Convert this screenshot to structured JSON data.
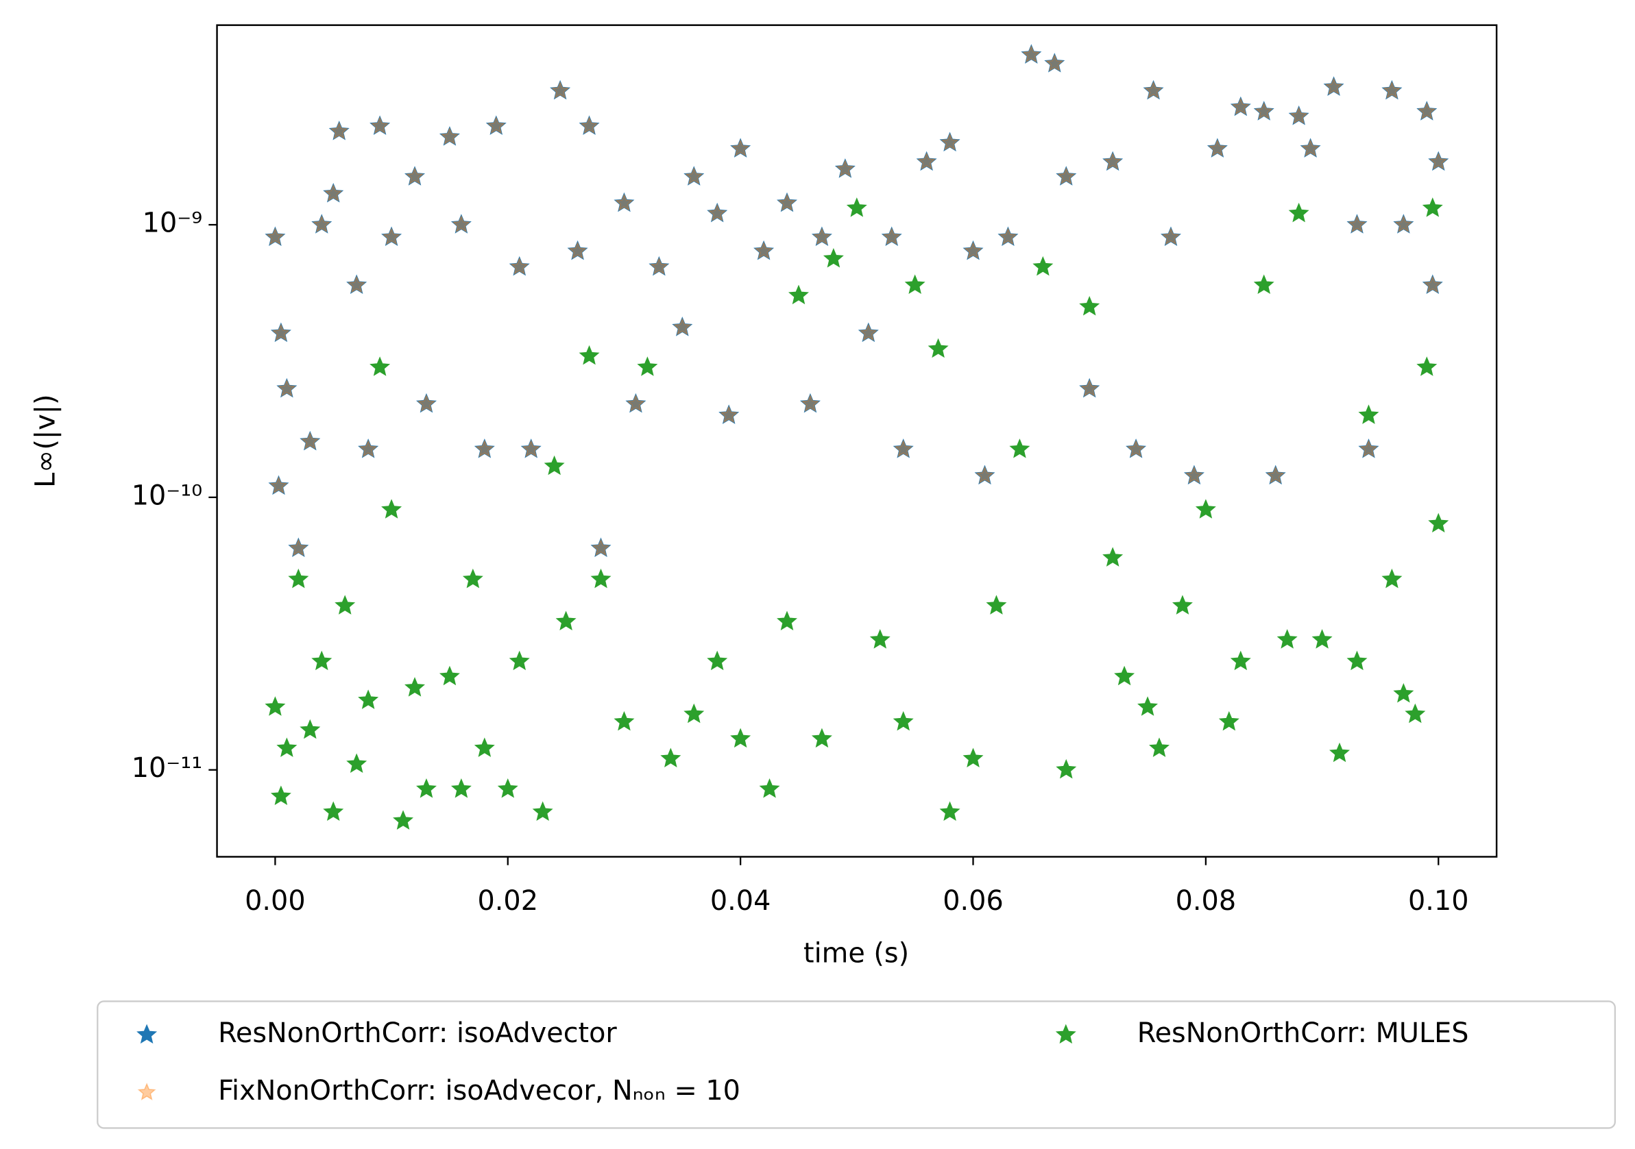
{
  "chart_data": {
    "type": "scatter",
    "x_label": "time (s)",
    "y_label": "L∞(|v|)",
    "xlim": [
      -0.005,
      0.105
    ],
    "ylim": [
      4.8e-12,
      5.4e-09
    ],
    "log_y": true,
    "xticks": [
      {
        "value": 0,
        "label": "0.00"
      },
      {
        "value": 0.02,
        "label": "0.02"
      },
      {
        "value": 0.04,
        "label": "0.04"
      },
      {
        "value": 0.06,
        "label": "0.06"
      },
      {
        "value": 0.08,
        "label": "0.08"
      },
      {
        "value": 0.1,
        "label": "0.10"
      }
    ],
    "yticks": [
      {
        "value": 1e-11,
        "label": "10⁻¹¹"
      },
      {
        "value": 1e-10,
        "label": "10⁻¹⁰"
      },
      {
        "value": 1e-09,
        "label": "10⁻⁹"
      }
    ],
    "legend": "below",
    "series": [
      {
        "name": "ResNonOrthCorr: isoAdvector",
        "color": "#1f77b4",
        "x": [
          0.0,
          0.0003,
          0.0005,
          0.001,
          0.002,
          0.003,
          0.004,
          0.005,
          0.0055,
          0.007,
          0.008,
          0.009,
          0.01,
          0.012,
          0.013,
          0.015,
          0.016,
          0.018,
          0.019,
          0.021,
          0.022,
          0.0245,
          0.026,
          0.027,
          0.028,
          0.03,
          0.031,
          0.033,
          0.035,
          0.036,
          0.038,
          0.039,
          0.04,
          0.042,
          0.044,
          0.046,
          0.047,
          0.049,
          0.051,
          0.053,
          0.054,
          0.056,
          0.058,
          0.06,
          0.061,
          0.063,
          0.065,
          0.067,
          0.068,
          0.07,
          0.072,
          0.074,
          0.0755,
          0.077,
          0.079,
          0.081,
          0.083,
          0.085,
          0.086,
          0.088,
          0.089,
          0.091,
          0.093,
          0.094,
          0.096,
          0.097,
          0.099,
          0.1,
          0.0995
        ],
        "values": [
          9e-10,
          1.1e-10,
          4e-10,
          2.5e-10,
          6.5e-11,
          1.6e-10,
          1e-09,
          1.3e-09,
          2.2e-09,
          6e-10,
          1.5e-10,
          2.3e-09,
          9e-10,
          1.5e-09,
          2.2e-10,
          2.1e-09,
          1e-09,
          1.5e-10,
          2.3e-09,
          7e-10,
          1.5e-10,
          3.1e-09,
          8e-10,
          2.3e-09,
          6.5e-11,
          1.2e-09,
          2.2e-10,
          7e-10,
          4.2e-10,
          1.5e-09,
          1.1e-09,
          2e-10,
          1.9e-09,
          8e-10,
          1.2e-09,
          2.2e-10,
          9e-10,
          1.6e-09,
          4e-10,
          9e-10,
          1.5e-10,
          1.7e-09,
          2e-09,
          8e-10,
          1.2e-10,
          9e-10,
          4.2e-09,
          3.9e-09,
          1.5e-09,
          2.5e-10,
          1.7e-09,
          1.5e-10,
          3.1e-09,
          9e-10,
          1.2e-10,
          1.9e-09,
          2.7e-09,
          2.6e-09,
          1.2e-10,
          2.5e-09,
          1.9e-09,
          3.2e-09,
          1e-09,
          1.5e-10,
          3.1e-09,
          1e-09,
          2.6e-09,
          1.7e-09,
          6e-10
        ]
      },
      {
        "name": "FixNonOrthCorr: isoAdvecor, Nₙₒₙ = 10",
        "color": "#ff7f0e",
        "x": [
          0.0,
          0.0003,
          0.0005,
          0.001,
          0.002,
          0.003,
          0.004,
          0.005,
          0.0055,
          0.007,
          0.008,
          0.009,
          0.01,
          0.012,
          0.013,
          0.015,
          0.016,
          0.018,
          0.019,
          0.021,
          0.022,
          0.0245,
          0.026,
          0.027,
          0.028,
          0.03,
          0.031,
          0.033,
          0.035,
          0.036,
          0.038,
          0.039,
          0.04,
          0.042,
          0.044,
          0.046,
          0.047,
          0.049,
          0.051,
          0.053,
          0.054,
          0.056,
          0.058,
          0.06,
          0.061,
          0.063,
          0.065,
          0.067,
          0.068,
          0.07,
          0.072,
          0.074,
          0.0755,
          0.077,
          0.079,
          0.081,
          0.083,
          0.085,
          0.086,
          0.088,
          0.089,
          0.091,
          0.093,
          0.094,
          0.096,
          0.097,
          0.099,
          0.1,
          0.0995
        ],
        "values": [
          9e-10,
          1.1e-10,
          4e-10,
          2.5e-10,
          6.5e-11,
          1.6e-10,
          1e-09,
          1.3e-09,
          2.2e-09,
          6e-10,
          1.5e-10,
          2.3e-09,
          9e-10,
          1.5e-09,
          2.2e-10,
          2.1e-09,
          1e-09,
          1.5e-10,
          2.3e-09,
          7e-10,
          1.5e-10,
          3.1e-09,
          8e-10,
          2.3e-09,
          6.5e-11,
          1.2e-09,
          2.2e-10,
          7e-10,
          4.2e-10,
          1.5e-09,
          1.1e-09,
          2e-10,
          1.9e-09,
          8e-10,
          1.2e-09,
          2.2e-10,
          9e-10,
          1.6e-09,
          4e-10,
          9e-10,
          1.5e-10,
          1.7e-09,
          2e-09,
          8e-10,
          1.2e-10,
          9e-10,
          4.2e-09,
          3.9e-09,
          1.5e-09,
          2.5e-10,
          1.7e-09,
          1.5e-10,
          3.1e-09,
          9e-10,
          1.2e-10,
          1.9e-09,
          2.7e-09,
          2.6e-09,
          1.2e-10,
          2.5e-09,
          1.9e-09,
          3.2e-09,
          1e-09,
          1.5e-10,
          3.1e-09,
          1e-09,
          2.6e-09,
          1.7e-09,
          6e-10
        ]
      },
      {
        "name": "ResNonOrthCorr: MULES",
        "color": "#2ca02c",
        "x": [
          0.0,
          0.0005,
          0.001,
          0.002,
          0.003,
          0.004,
          0.005,
          0.006,
          0.007,
          0.008,
          0.009,
          0.01,
          0.011,
          0.012,
          0.013,
          0.015,
          0.016,
          0.017,
          0.018,
          0.02,
          0.021,
          0.023,
          0.024,
          0.025,
          0.027,
          0.028,
          0.03,
          0.032,
          0.034,
          0.036,
          0.038,
          0.04,
          0.0425,
          0.044,
          0.045,
          0.047,
          0.048,
          0.05,
          0.052,
          0.054,
          0.055,
          0.057,
          0.058,
          0.06,
          0.062,
          0.064,
          0.066,
          0.068,
          0.07,
          0.072,
          0.073,
          0.075,
          0.076,
          0.078,
          0.08,
          0.082,
          0.083,
          0.085,
          0.087,
          0.088,
          0.09,
          0.0915,
          0.093,
          0.094,
          0.096,
          0.097,
          0.098,
          0.099,
          0.1,
          0.0995
        ],
        "values": [
          1.7e-11,
          8e-12,
          1.2e-11,
          5e-11,
          1.4e-11,
          2.5e-11,
          7e-12,
          4e-11,
          1.05e-11,
          1.8e-11,
          3e-10,
          9e-11,
          6.5e-12,
          2e-11,
          8.5e-12,
          2.2e-11,
          8.5e-12,
          5e-11,
          1.2e-11,
          8.5e-12,
          2.5e-11,
          7e-12,
          1.3e-10,
          3.5e-11,
          3.3e-10,
          5e-11,
          1.5e-11,
          3e-10,
          1.1e-11,
          1.6e-11,
          2.5e-11,
          1.3e-11,
          8.5e-12,
          3.5e-11,
          5.5e-10,
          1.3e-11,
          7.5e-10,
          1.15e-09,
          3e-11,
          1.5e-11,
          6e-10,
          3.5e-10,
          7e-12,
          1.1e-11,
          4e-11,
          1.5e-10,
          7e-10,
          1e-11,
          5e-10,
          6e-11,
          2.2e-11,
          1.7e-11,
          1.2e-11,
          4e-11,
          9e-11,
          1.5e-11,
          2.5e-11,
          6e-10,
          3e-11,
          1.1e-09,
          3e-11,
          1.15e-11,
          2.5e-11,
          2e-10,
          5e-11,
          1.9e-11,
          1.6e-11,
          3e-10,
          8e-11,
          1.15e-09
        ]
      }
    ]
  }
}
